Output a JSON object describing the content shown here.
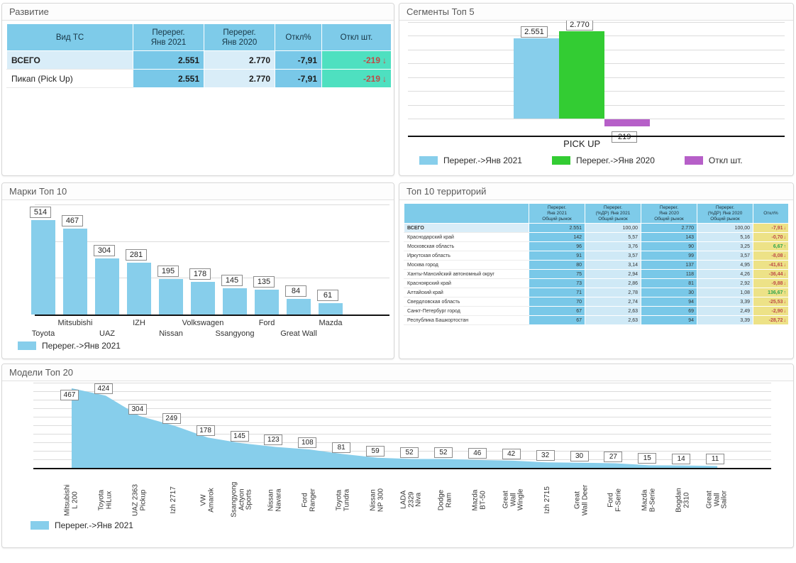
{
  "colors": {
    "bar_blue": "#87CEEB",
    "bar_green": "#33CC33",
    "bar_purple": "#B65FC8",
    "header_blue": "#7ECBE9",
    "cell_blue": "#79C8E8",
    "cell_light_blue": "#D9EDF8",
    "cell_teal": "#4EE0C0",
    "cell_yellow": "#EDE287",
    "neg_red": "#BE4B48",
    "pos_green": "#2EA44E"
  },
  "chart_data": [
    {
      "type": "table",
      "panel": "development",
      "title": "Развитие",
      "headers": [
        "Вид ТС",
        "Перерег.\nЯнв 2021",
        "Перерег.\nЯнв 2020",
        "Откл%",
        "Откл шт."
      ],
      "rows": [
        {
          "name": "ВСЕГО",
          "bold": true,
          "reg2021": "2.551",
          "reg2020": "2.770",
          "dev_pct": "-7,91",
          "dev_units": "-219",
          "trend": "down"
        },
        {
          "name": "Пикап (Pick Up)",
          "bold": false,
          "reg2021": "2.551",
          "reg2020": "2.770",
          "dev_pct": "-7,91",
          "dev_units": "-219",
          "trend": "down"
        }
      ]
    },
    {
      "type": "bar",
      "panel": "segments-top5",
      "title": "Сегменты Топ 5",
      "categories": [
        "PICK UP"
      ],
      "series": [
        {
          "name": "Перерег.->Янв 2021",
          "color": "bar_blue",
          "values": [
            2551
          ],
          "labels": [
            "2.551"
          ]
        },
        {
          "name": "Перерег.->Янв 2020",
          "color": "bar_green",
          "values": [
            2770
          ],
          "labels": [
            "2.770"
          ]
        },
        {
          "name": "Откл шт.",
          "color": "bar_purple",
          "values": [
            -219
          ],
          "labels": [
            "219"
          ]
        }
      ],
      "ylim": [
        -300,
        2800
      ],
      "grid": true,
      "legend_position": "bottom"
    },
    {
      "type": "bar",
      "panel": "brands-top10",
      "title": "Марки Топ 10",
      "categories": [
        "Toyota",
        "Mitsubishi",
        "UAZ",
        "IZH",
        "Nissan",
        "Volkswagen",
        "Ssangyong",
        "Ford",
        "Great Wall",
        "Mazda"
      ],
      "values": [
        514,
        467,
        304,
        281,
        195,
        178,
        145,
        135,
        84,
        61
      ],
      "labels": [
        "514",
        "467",
        "304",
        "281",
        "195",
        "178",
        "145",
        "135",
        "84",
        "61"
      ],
      "ylim": [
        0,
        600
      ],
      "grid_step": 200,
      "grid": true,
      "legend": [
        {
          "label": "Перерег.->Янв 2021",
          "color": "bar_blue"
        }
      ],
      "legend_position": "bottom"
    },
    {
      "type": "table",
      "panel": "territories-top10",
      "title": "Топ 10 территорий",
      "headers": [
        "",
        "Перерег.\nЯнв 2021\nОбщий рынок",
        "Перерег.\n(%ДР) Янв 2021\nОбщий рынок",
        "Перерег.\nЯнв 2020\nОбщий рынок",
        "Перерег.\n(%ДР) Янв 2020\nОбщий рынок",
        "Откл%"
      ],
      "rows": [
        [
          "ВСЕГО",
          "2.551",
          "100,00",
          "2.770",
          "100,00",
          "-7,91",
          "down"
        ],
        [
          "Краснодарский край",
          "142",
          "5,57",
          "143",
          "5,16",
          "-0,70",
          "down"
        ],
        [
          "Московская область",
          "96",
          "3,76",
          "90",
          "3,25",
          "6,67",
          "up"
        ],
        [
          "Иркутская область",
          "91",
          "3,57",
          "99",
          "3,57",
          "-8,08",
          "down"
        ],
        [
          "Москва город",
          "80",
          "3,14",
          "137",
          "4,95",
          "-41,61",
          "down"
        ],
        [
          "Ханты-Мансийский автономный округ",
          "75",
          "2,94",
          "118",
          "4,26",
          "-36,44",
          "down"
        ],
        [
          "Красноярский край",
          "73",
          "2,86",
          "81",
          "2,92",
          "-9,88",
          "down"
        ],
        [
          "Алтайский край",
          "71",
          "2,78",
          "30",
          "1,08",
          "136,67",
          "up"
        ],
        [
          "Свердловская область",
          "70",
          "2,74",
          "94",
          "3,39",
          "-25,53",
          "down"
        ],
        [
          "Санкт-Петербург город",
          "67",
          "2,63",
          "69",
          "2,49",
          "-2,90",
          "down"
        ],
        [
          "Республика Башкортостан",
          "67",
          "2,63",
          "94",
          "3,39",
          "-28,72",
          "down"
        ]
      ]
    },
    {
      "type": "area",
      "panel": "models-top20",
      "title": "Модели Топ 20",
      "categories": [
        "Mitsubishi\nL 200",
        "Toyota\nHiLux",
        "UAZ 2363\nPickup",
        "Izh 2717",
        "VW\nAmarok",
        "Ssangyong\nActyon\nSports",
        "Nissan\nNavara",
        "Ford\nRanger",
        "Toyota\nTundra",
        "Nissan\nNP 300",
        "LADA\n2329\nNiva",
        "Dodge\nRam",
        "Mazda\nBT-50",
        "Great\nWall\nWingle",
        "Izh 2715",
        "Great\nWall Deer",
        "Ford\nF-Serie",
        "Mazda\nB-Serie",
        "Bogdan\n2310",
        "Great\nWall\nSailor"
      ],
      "values": [
        467,
        424,
        304,
        249,
        178,
        145,
        123,
        108,
        81,
        59,
        52,
        52,
        46,
        42,
        32,
        30,
        27,
        15,
        14,
        11
      ],
      "labels": [
        "467",
        "424",
        "304",
        "249",
        "178",
        "145",
        "123",
        "108",
        "81",
        "59",
        "52",
        "52",
        "46",
        "42",
        "32",
        "30",
        "27",
        "15",
        "14",
        "11"
      ],
      "ylim": [
        0,
        500
      ],
      "grid_step": 50,
      "grid": true,
      "legend": [
        {
          "label": "Перерег.->Янв 2021",
          "color": "bar_blue"
        }
      ],
      "legend_position": "bottom"
    }
  ]
}
